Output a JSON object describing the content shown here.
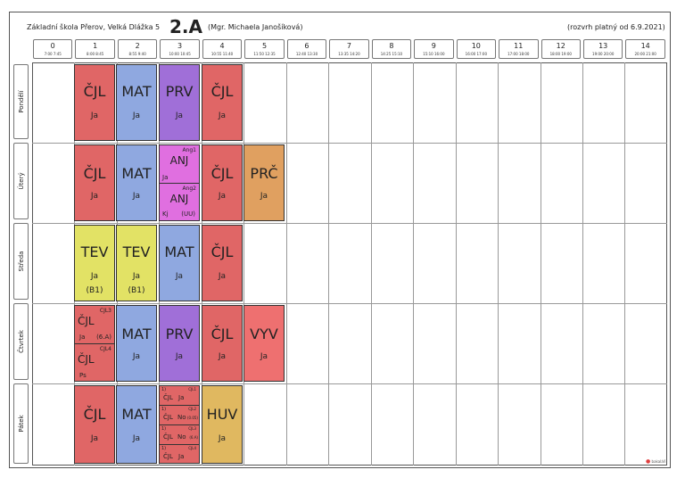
{
  "header": {
    "school": "Základní škola Přerov, Velká Dlážka 5",
    "class_name": "2.A",
    "teacher": "(Mgr. Michaela Janošíková)",
    "valid_from": "(rozvrh platný od 6.9.2021)"
  },
  "periods": [
    {
      "num": "0",
      "time": "7:00 7:45"
    },
    {
      "num": "1",
      "time": "8:00 8:45"
    },
    {
      "num": "2",
      "time": "8:55 9:40"
    },
    {
      "num": "3",
      "time": "10:00 10:45"
    },
    {
      "num": "4",
      "time": "10:55 11:40"
    },
    {
      "num": "5",
      "time": "11:50 12:35"
    },
    {
      "num": "6",
      "time": "12:40 13:30"
    },
    {
      "num": "7",
      "time": "13:35 14:20"
    },
    {
      "num": "8",
      "time": "14:25 15:10"
    },
    {
      "num": "9",
      "time": "15:10 16:00"
    },
    {
      "num": "10",
      "time": "16:00 17:00"
    },
    {
      "num": "11",
      "time": "17:00 18:00"
    },
    {
      "num": "12",
      "time": "18:00 19:00"
    },
    {
      "num": "13",
      "time": "19:00 20:00"
    },
    {
      "num": "14",
      "time": "20:00 21:00"
    }
  ],
  "days": [
    "Pondělí",
    "Úterý",
    "Středa",
    "Čtvrtek",
    "Pátek"
  ],
  "lessons": {
    "mon": [
      {
        "subject": "ČJL",
        "teacher": "Ja"
      },
      {
        "subject": "MAT",
        "teacher": "Ja"
      },
      {
        "subject": "PRV",
        "teacher": "Ja"
      },
      {
        "subject": "ČJL",
        "teacher": "Ja"
      }
    ],
    "tue": {
      "p1": {
        "subject": "ČJL",
        "teacher": "Ja"
      },
      "p2": {
        "subject": "MAT",
        "teacher": "Ja"
      },
      "p3a": {
        "group": "Ang1",
        "subject": "ANJ",
        "teacher": "Ja"
      },
      "p3b": {
        "group": "Ang2",
        "subject": "ANJ",
        "teacher": "Kj",
        "room": "(UU)"
      },
      "p4": {
        "subject": "ČJL",
        "teacher": "Ja"
      },
      "p5": {
        "subject": "PRČ",
        "teacher": "Ja"
      }
    },
    "wed": [
      {
        "subject": "TEV",
        "teacher": "Ja",
        "room": "(B1)"
      },
      {
        "subject": "TEV",
        "teacher": "Ja",
        "room": "(B1)"
      },
      {
        "subject": "MAT",
        "teacher": "Ja"
      },
      {
        "subject": "ČJL",
        "teacher": "Ja"
      }
    ],
    "thu": {
      "p1a": {
        "group": "CJL3",
        "subject": "ČJL",
        "teacher": "Ja",
        "room": "(6.A)"
      },
      "p1b": {
        "group": "CJL4",
        "subject": "ČJL",
        "teacher": "Ps"
      },
      "p2": {
        "subject": "MAT",
        "teacher": "Ja"
      },
      "p3": {
        "subject": "PRV",
        "teacher": "Ja"
      },
      "p4": {
        "subject": "ČJL",
        "teacher": "Ja"
      },
      "p5": {
        "subject": "VYV",
        "teacher": "Ja"
      }
    },
    "fri": {
      "p1": {
        "subject": "ČJL",
        "teacher": "Ja"
      },
      "p2": {
        "subject": "MAT",
        "teacher": "Ja"
      },
      "p3": [
        {
          "mark": "1)",
          "group": "CJL1",
          "subject": "ČJL",
          "teacher": "Ja"
        },
        {
          "mark": "1)",
          "group": "CJL2",
          "subject": "ČJL",
          "teacher": "No",
          "room": "(0.05)"
        },
        {
          "mark": "1)",
          "group": "CJL3",
          "subject": "ČJL",
          "teacher": "No",
          "room": "(6.A)"
        },
        {
          "mark": "1)",
          "group": "CJL4",
          "subject": "ČJL",
          "teacher": "Ja"
        }
      ],
      "p4": {
        "subject": "HUV",
        "teacher": "Ja"
      }
    }
  },
  "logo": {
    "text": "bakaláři"
  },
  "colors": {
    "cjl": "#e06666",
    "mat": "#8fa8e0",
    "prv": "#a06fd8",
    "anj": "#e06fe0",
    "tev": "#e2e265",
    "prc": "#e0a060",
    "huv": "#e0b860",
    "vyv": "#ee7070"
  }
}
